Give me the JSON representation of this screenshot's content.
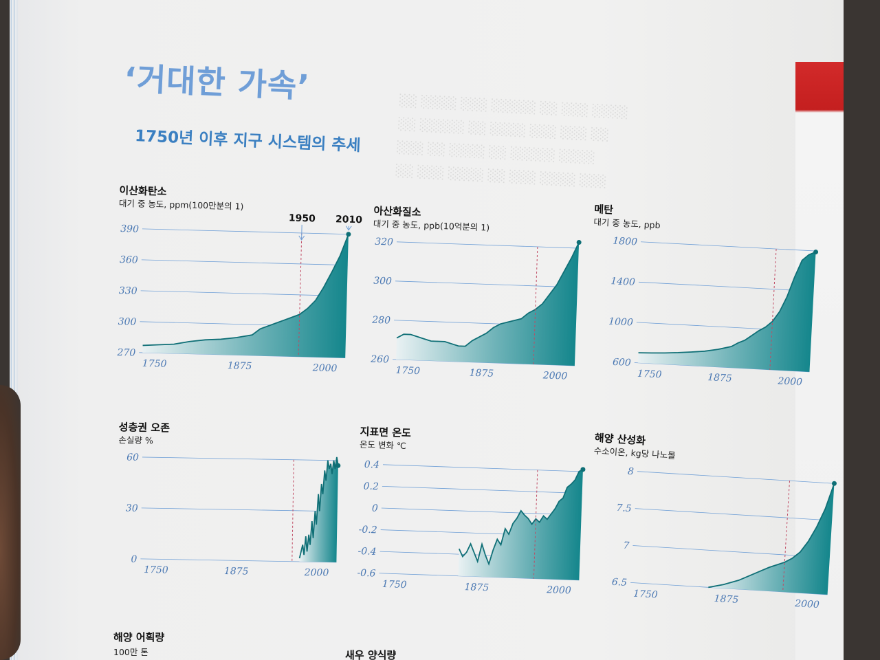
{
  "heading": {
    "title": "‘거대한 가속’",
    "subtitle": "1750년 이후 지구 시스템의 추세"
  },
  "colors": {
    "fill": "#1d8e94",
    "fill_light": "#e6eff2",
    "grid": "#6f9fd6",
    "marker": "#c04a63",
    "title": "#6f9ed7",
    "subtitle": "#3a7fc1"
  },
  "chart_data": [
    {
      "type": "area",
      "title": "이산화탄소",
      "unit": "대기 중 농도, ppm(100만분의 1)",
      "xlim": [
        1750,
        2010
      ],
      "ylim": [
        270,
        390
      ],
      "yticks": [
        270,
        300,
        330,
        360,
        390
      ],
      "xticks": [
        1750,
        1875,
        2000
      ],
      "markers": [
        1950,
        2010
      ],
      "marker_labels": [
        "1950",
        "2010"
      ],
      "x": [
        1750,
        1770,
        1790,
        1810,
        1830,
        1850,
        1870,
        1890,
        1900,
        1910,
        1920,
        1930,
        1940,
        1950,
        1960,
        1970,
        1980,
        1990,
        2000,
        2010
      ],
      "y": [
        277,
        278,
        279,
        282,
        284,
        285,
        287,
        290,
        296,
        299,
        302,
        305,
        308,
        311,
        317,
        325,
        338,
        353,
        369,
        390
      ]
    },
    {
      "type": "area",
      "title": "아산화질소",
      "unit": "대기 중 농도, ppb(10억분의 1)",
      "xlim": [
        1750,
        2010
      ],
      "ylim": [
        260,
        320
      ],
      "yticks": [
        260,
        280,
        300,
        320
      ],
      "xticks": [
        1750,
        1875,
        2000
      ],
      "markers": [
        1950
      ],
      "x": [
        1750,
        1760,
        1770,
        1780,
        1790,
        1800,
        1810,
        1820,
        1830,
        1840,
        1850,
        1860,
        1870,
        1880,
        1890,
        1900,
        1910,
        1920,
        1930,
        1940,
        1950,
        1960,
        1970,
        1980,
        1990,
        2000,
        2010
      ],
      "y": [
        271,
        273,
        273,
        272,
        271,
        270,
        270,
        270,
        269,
        268,
        268,
        271,
        273,
        275,
        278,
        280,
        281,
        282,
        283,
        286,
        288,
        291,
        296,
        301,
        308,
        315,
        323
      ]
    },
    {
      "type": "area",
      "title": "메탄",
      "unit": "대기 중 농도, ppb",
      "xlim": [
        1750,
        2010
      ],
      "ylim": [
        600,
        1800
      ],
      "yticks": [
        600,
        1000,
        1400,
        1800
      ],
      "xticks": [
        1750,
        1875,
        2000
      ],
      "markers": [
        1950
      ],
      "x": [
        1750,
        1770,
        1790,
        1810,
        1830,
        1850,
        1870,
        1890,
        1900,
        1910,
        1920,
        1930,
        1940,
        1950,
        1960,
        1970,
        1980,
        1990,
        2000,
        2010
      ],
      "y": [
        700,
        705,
        712,
        722,
        735,
        750,
        775,
        810,
        850,
        880,
        930,
        980,
        1020,
        1080,
        1180,
        1330,
        1530,
        1700,
        1760,
        1790
      ]
    },
    {
      "type": "area",
      "title": "성층권 오존",
      "unit": "손실량 %",
      "xlim": [
        1750,
        2010
      ],
      "ylim": [
        0,
        60
      ],
      "yticks": [
        0,
        30,
        60
      ],
      "xticks": [
        1750,
        1875,
        2000
      ],
      "markers": [
        1950
      ],
      "x": [
        1960,
        1964,
        1966,
        1968,
        1970,
        1972,
        1974,
        1976,
        1978,
        1980,
        1982,
        1984,
        1986,
        1988,
        1990,
        1992,
        1994,
        1996,
        1998,
        2000,
        2002,
        2004,
        2006,
        2008,
        2010
      ],
      "y": [
        2,
        10,
        4,
        15,
        6,
        16,
        10,
        24,
        14,
        30,
        22,
        40,
        30,
        46,
        40,
        54,
        48,
        60,
        55,
        58,
        52,
        60,
        55,
        62,
        57
      ]
    },
    {
      "type": "area",
      "title": "지표면 온도",
      "unit": "온도 변화 ℃",
      "xlim": [
        1750,
        2010
      ],
      "ylim": [
        -0.6,
        0.4
      ],
      "yticks": [
        -0.6,
        -0.4,
        -0.2,
        0,
        0.2,
        0.4
      ],
      "xticks": [
        1750,
        1875,
        2000
      ],
      "markers": [
        1950
      ],
      "x": [
        1850,
        1855,
        1860,
        1865,
        1870,
        1875,
        1880,
        1885,
        1890,
        1895,
        1900,
        1905,
        1910,
        1915,
        1920,
        1925,
        1930,
        1935,
        1940,
        1945,
        1950,
        1955,
        1960,
        1965,
        1970,
        1975,
        1980,
        1985,
        1990,
        1995,
        2000,
        2005,
        2010
      ],
      "y": [
        -0.35,
        -0.42,
        -0.38,
        -0.3,
        -0.38,
        -0.46,
        -0.3,
        -0.4,
        -0.48,
        -0.35,
        -0.25,
        -0.3,
        -0.15,
        -0.2,
        -0.1,
        -0.05,
        0.02,
        -0.02,
        -0.05,
        -0.1,
        -0.05,
        -0.08,
        -0.02,
        -0.05,
        0.0,
        0.05,
        0.12,
        0.15,
        0.25,
        0.28,
        0.32,
        0.4,
        0.42
      ]
    },
    {
      "type": "area",
      "title": "해양 산성화",
      "unit": "수소이온, kg당 나노몰",
      "xlim": [
        1750,
        2010
      ],
      "ylim": [
        6.5,
        8.0
      ],
      "yticks": [
        6.5,
        7.0,
        7.5,
        8.0
      ],
      "xticks": [
        1750,
        1875,
        2000
      ],
      "markers": [
        1950
      ],
      "x": [
        1850,
        1870,
        1890,
        1900,
        1910,
        1920,
        1930,
        1940,
        1950,
        1960,
        1970,
        1980,
        1990,
        2000,
        2010
      ],
      "y": [
        6.5,
        6.55,
        6.62,
        6.67,
        6.72,
        6.77,
        6.82,
        6.86,
        6.9,
        6.96,
        7.05,
        7.2,
        7.4,
        7.65,
        8.0
      ]
    }
  ],
  "next_sections": {
    "fish_title": "해양 어획량",
    "fish_unit": "100만 톤",
    "shrimp_title": "새우 양식량"
  }
}
